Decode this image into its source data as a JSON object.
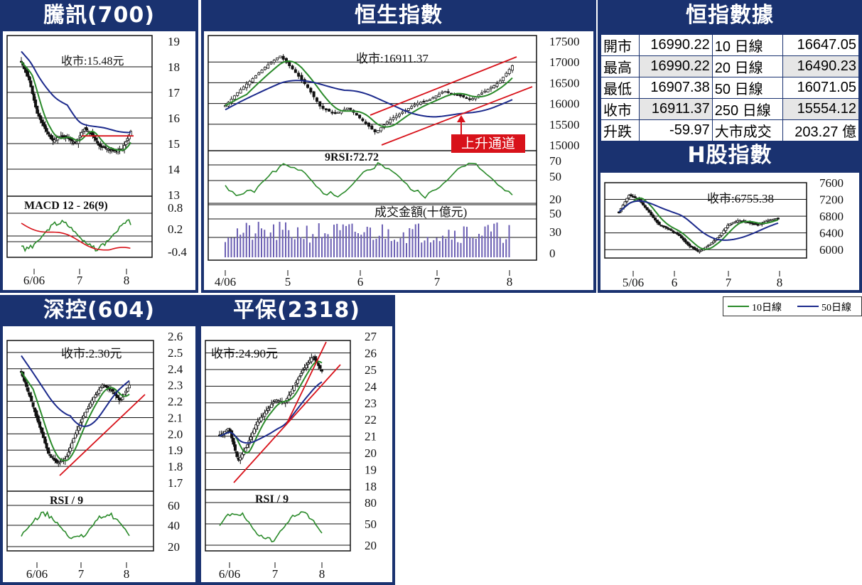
{
  "colors": {
    "navy": "#1a3270",
    "green": "#2a8a2a",
    "blue": "#1c2a8c",
    "red": "#d8121a",
    "black": "#111111"
  },
  "panels": {
    "tencent": {
      "title": "騰訊(700)",
      "close_label": "收市:15.48元",
      "ind_label": "MACD 12 - 26(9)"
    },
    "hsi": {
      "title": "恒生指數",
      "close_label": "收市:16911.37",
      "rsi_label": "9RSI:72.72",
      "vol_label": "成交金額(十億元)",
      "annotation": "上升通道"
    },
    "hsi_data": {
      "title": "恒指數據"
    },
    "hshares": {
      "title": "H股指數",
      "close_label": "收市:6755.38"
    },
    "szi": {
      "title": "深控(604)",
      "close_label": "收市:2.30元",
      "ind_label": "RSI / 9"
    },
    "pingan": {
      "title": "平保(2318)",
      "close_label": "收市:24.90元",
      "ind_label": "RSI / 9"
    }
  },
  "hsi_table": [
    [
      "開市",
      "16990.22",
      "10 日線",
      "16647.05"
    ],
    [
      "最高",
      "16990.22",
      "20 日線",
      "16490.23"
    ],
    [
      "最低",
      "16907.38",
      "50 日線",
      "16071.05"
    ],
    [
      "收市",
      "16911.37",
      "250 日線",
      "15554.12"
    ],
    [
      "升跌",
      "-59.97",
      "大市成交",
      "203.27 億"
    ]
  ],
  "legend": {
    "ma10": "10日線",
    "ma50": "50日線"
  },
  "chart_data": [
    {
      "type": "line",
      "title": "騰訊(700)",
      "x_ticks": [
        "6/06",
        "7",
        "8"
      ],
      "y_ticks": [
        "19",
        "18",
        "17",
        "16",
        "15",
        "14",
        "13"
      ],
      "ylim": [
        13,
        19
      ],
      "ind_ticks": [
        "0.8",
        "0.2",
        "-0.4"
      ],
      "series": [
        {
          "name": "收市",
          "values": [
            18.2,
            17.5,
            16.2,
            15.6,
            15.1,
            15.3,
            15.2,
            15.0,
            15.6,
            15.4,
            14.9,
            14.8,
            14.7,
            14.8,
            15.48
          ]
        }
      ]
    },
    {
      "type": "line",
      "title": "恒生指數",
      "x_ticks": [
        "4/06",
        "5",
        "6",
        "7",
        "8"
      ],
      "y_ticks": [
        "17500",
        "17000",
        "16500",
        "16000",
        "15500",
        "15000"
      ],
      "ylim": [
        15000,
        17500
      ],
      "rsi_ticks": [
        "70",
        "50",
        "20"
      ],
      "vol_ticks": [
        "50",
        "30",
        "0"
      ],
      "series": [
        {
          "name": "收市",
          "values": [
            15950,
            16300,
            16600,
            16900,
            17150,
            16800,
            16400,
            15900,
            15750,
            15900,
            15600,
            15300,
            15600,
            15800,
            16000,
            16100,
            16300,
            16200,
            16100,
            16300,
            16500,
            16911
          ]
        }
      ]
    },
    {
      "type": "line",
      "title": "H股指數",
      "x_ticks": [
        "5/06",
        "6",
        "7",
        "8"
      ],
      "y_ticks": [
        "7600",
        "7200",
        "6800",
        "6400",
        "6000"
      ],
      "ylim": [
        5800,
        7600
      ],
      "series": [
        {
          "name": "收市",
          "values": [
            6900,
            7300,
            7200,
            6900,
            6600,
            6500,
            6350,
            6100,
            5950,
            6100,
            6300,
            6600,
            6700,
            6650,
            6600,
            6700,
            6755
          ]
        }
      ]
    },
    {
      "type": "line",
      "title": "深控(604)",
      "x_ticks": [
        "6/06",
        "7",
        "8"
      ],
      "y_ticks": [
        "2.6",
        "2.5",
        "2.4",
        "2.3",
        "2.2",
        "2.1",
        "2.0",
        "1.9",
        "1.8",
        "1.7"
      ],
      "ylim": [
        1.7,
        2.6
      ],
      "ind_ticks": [
        "60",
        "40",
        "20"
      ],
      "series": [
        {
          "name": "收市",
          "values": [
            2.38,
            2.22,
            2.05,
            1.88,
            1.82,
            1.85,
            2.0,
            2.12,
            2.22,
            2.3,
            2.27,
            2.2,
            2.3
          ]
        }
      ]
    },
    {
      "type": "line",
      "title": "平保(2318)",
      "x_ticks": [
        "6/06",
        "7",
        "8"
      ],
      "y_ticks": [
        "27",
        "26",
        "25",
        "24",
        "23",
        "22",
        "21",
        "20",
        "19",
        "18"
      ],
      "ylim": [
        18,
        27
      ],
      "ind_ticks": [
        "80",
        "50",
        "20"
      ],
      "series": [
        {
          "name": "收市",
          "values": [
            21.0,
            21.5,
            19.5,
            20.5,
            21.8,
            22.5,
            23.2,
            23.0,
            24.0,
            25.0,
            25.8,
            24.9
          ]
        }
      ]
    }
  ]
}
